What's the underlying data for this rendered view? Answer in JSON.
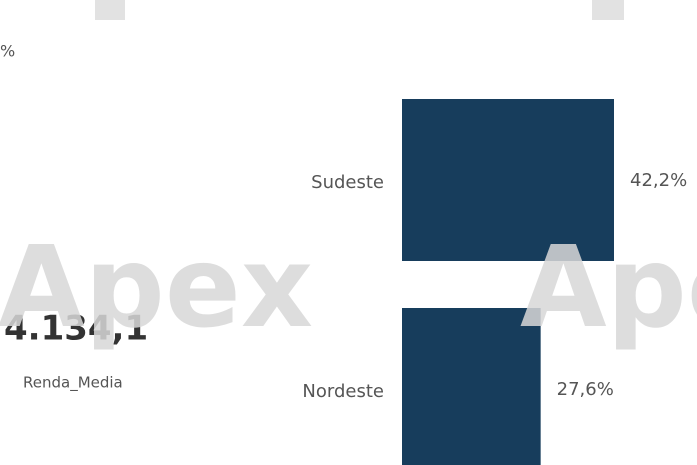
{
  "fragment": "%",
  "card": {
    "value": "4.134,1",
    "label": "Renda_Media"
  },
  "watermark": "Apex",
  "chart_data": {
    "type": "bar",
    "orientation": "horizontal",
    "categories": [
      "Sudeste",
      "Nordeste"
    ],
    "values": [
      42.2,
      27.6
    ],
    "value_labels": [
      "42,2%",
      "27,6%"
    ],
    "color": "#173d5c"
  }
}
